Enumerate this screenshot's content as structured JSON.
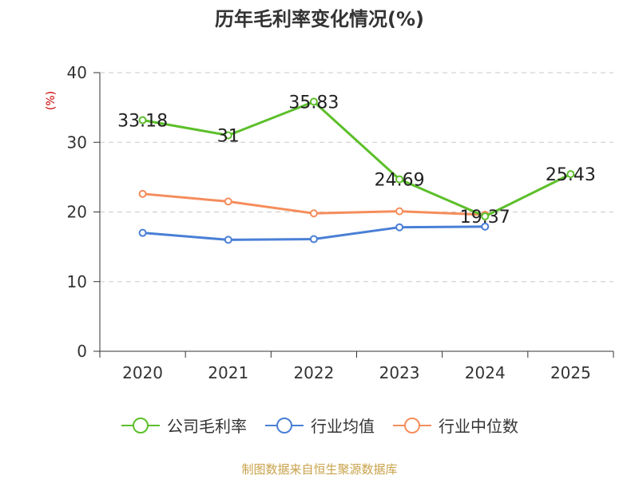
{
  "chart_data": {
    "type": "line",
    "title": "历年毛利率变化情况(%)",
    "ylabel": "(%)",
    "categories": [
      "2020",
      "2021",
      "2022",
      "2023",
      "2024",
      "2025"
    ],
    "ylim": [
      0,
      40
    ],
    "yticks": [
      0,
      10,
      20,
      30,
      40
    ],
    "grid": true,
    "legend_position": "bottom",
    "series": [
      {
        "name": "公司毛利率",
        "color": "#5cbf2a",
        "values": [
          33.18,
          31,
          35.83,
          24.69,
          19.37,
          25.43
        ],
        "labels": [
          "33.18",
          "31",
          "35.83",
          "24.69",
          "19.37",
          "25.43"
        ]
      },
      {
        "name": "行业均值",
        "color": "#4a7fd6",
        "values": [
          17.0,
          16.0,
          16.1,
          17.8,
          17.9,
          null
        ]
      },
      {
        "name": "行业中位数",
        "color": "#f58d5c",
        "values": [
          22.6,
          21.5,
          19.8,
          20.1,
          19.6,
          null
        ]
      }
    ]
  },
  "source_text": "制图数据来自恒生聚源数据库"
}
